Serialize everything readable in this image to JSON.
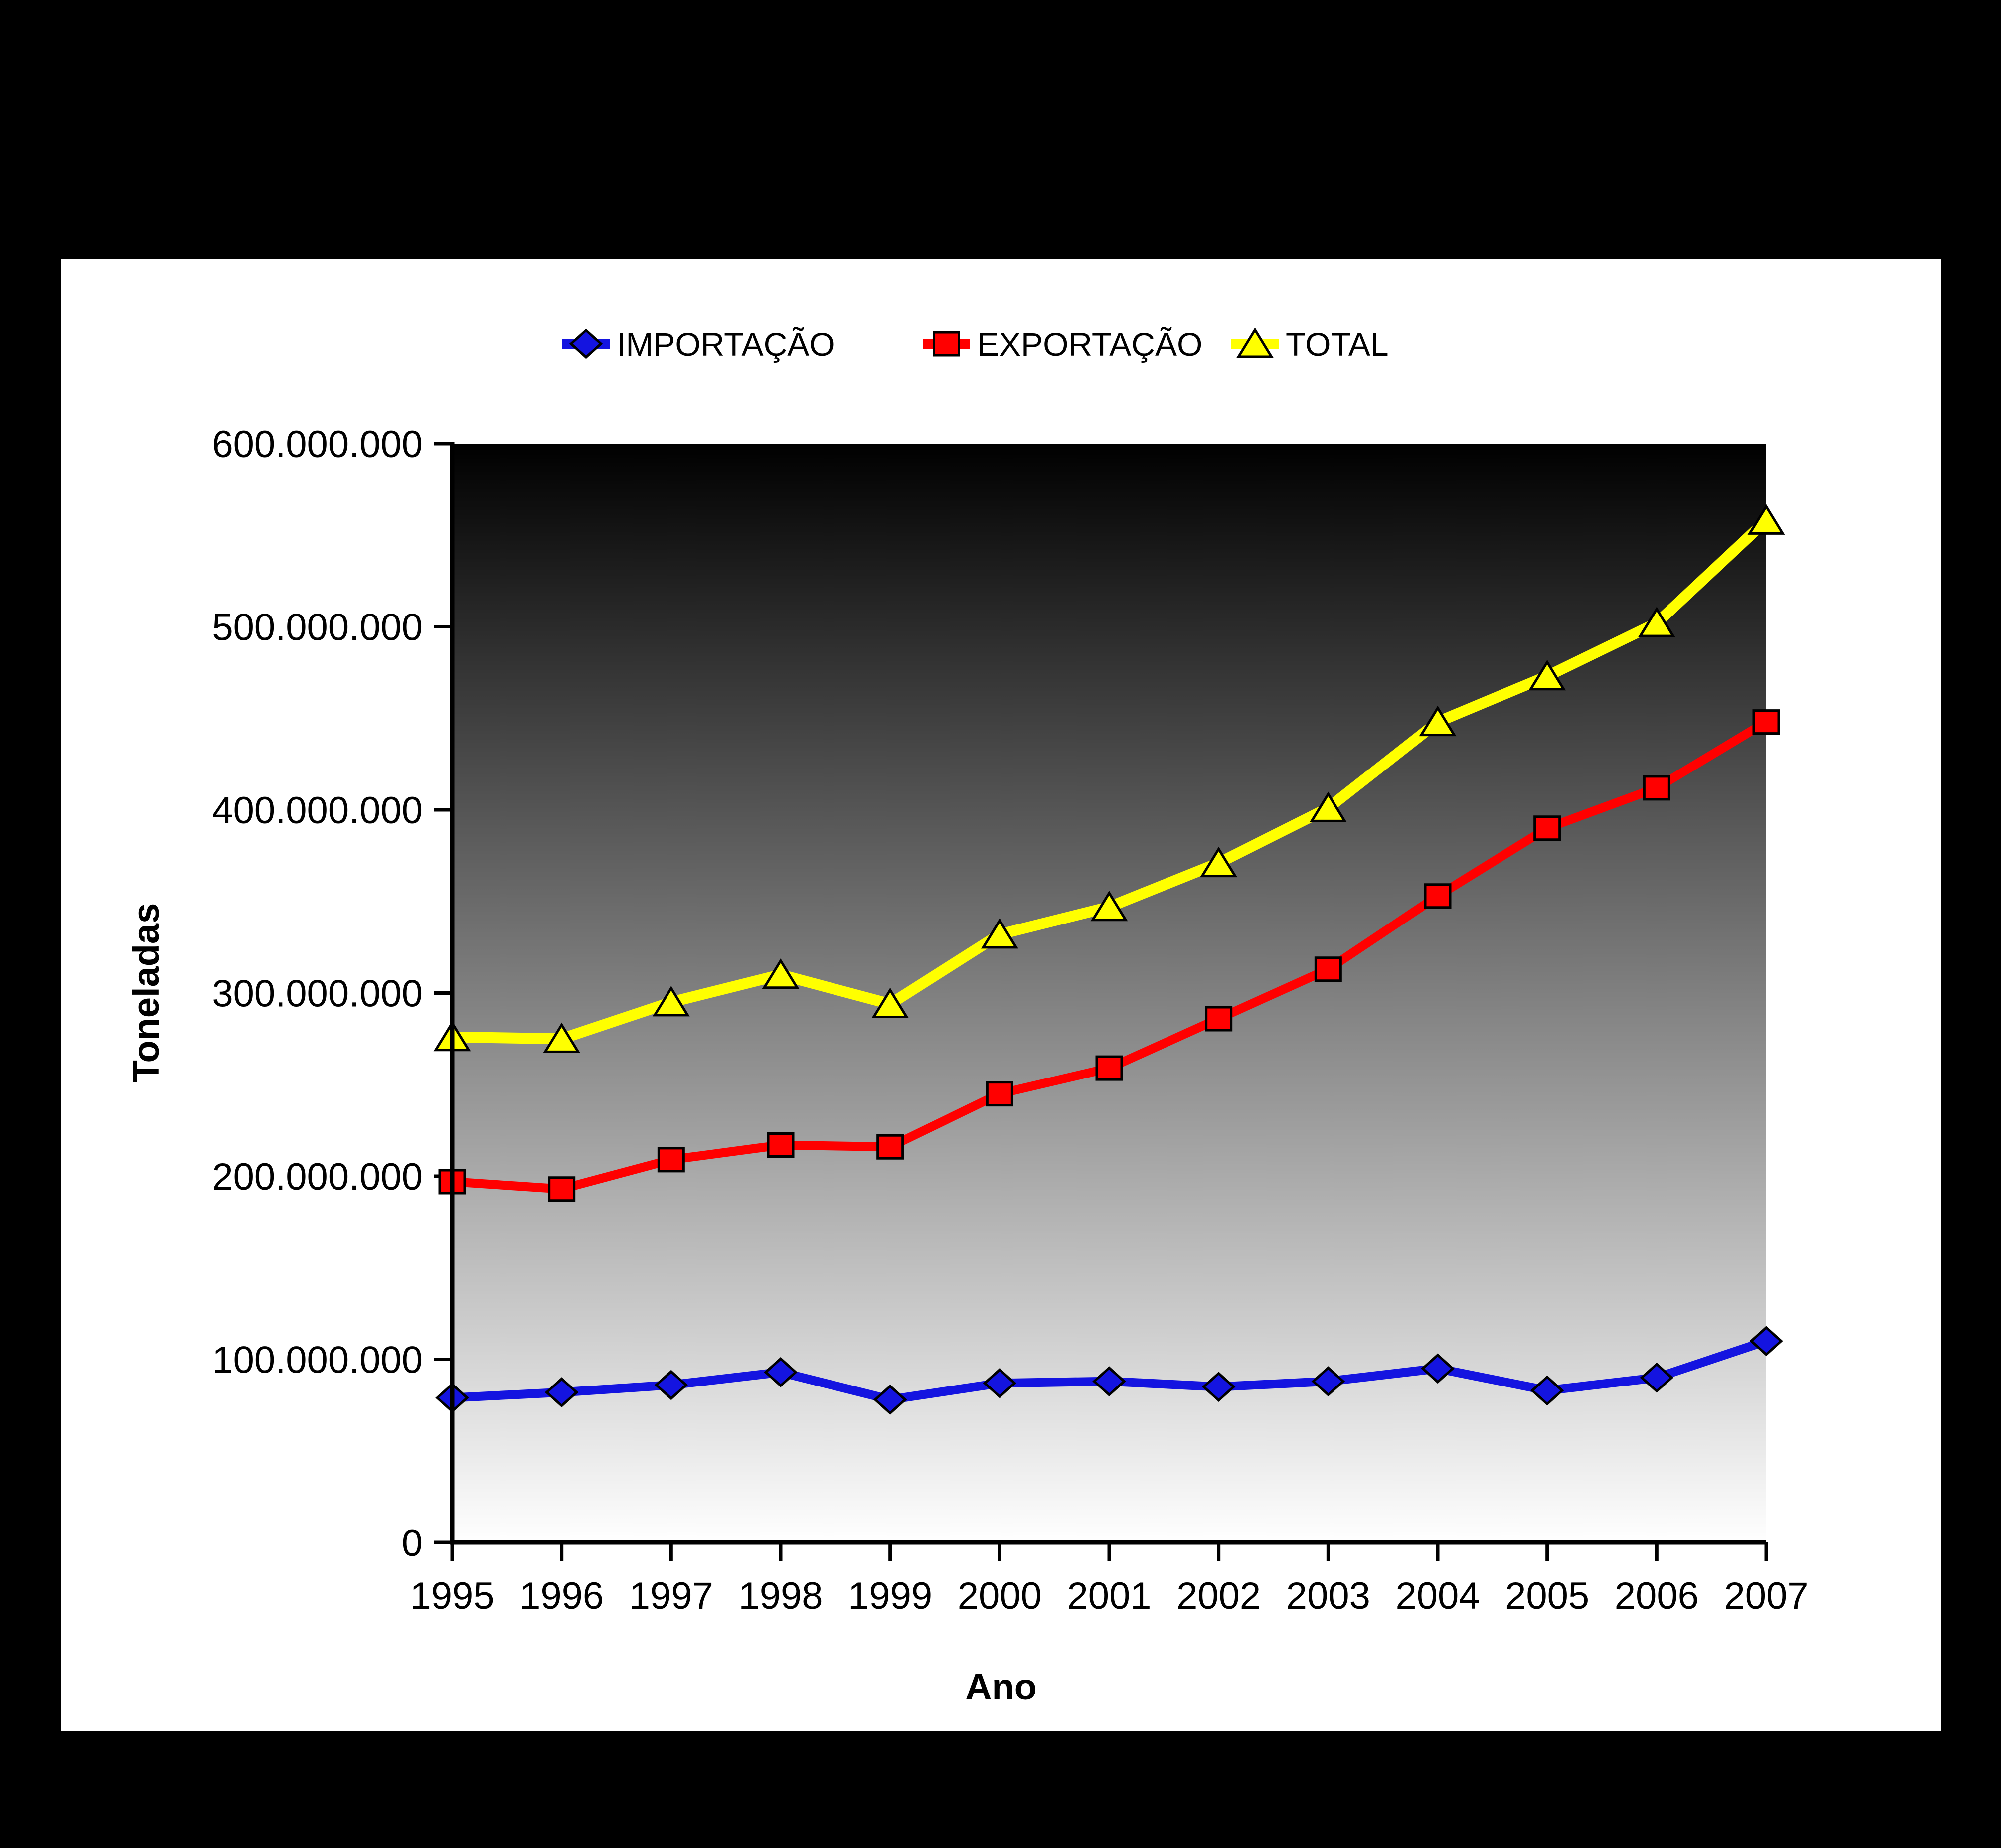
{
  "page": {
    "background_color": "#000000",
    "panel_color": "#ffffff"
  },
  "chart_data": {
    "type": "line",
    "title": "",
    "xlabel": "Ano",
    "ylabel": "Toneladas",
    "x": [
      "1995",
      "1996",
      "1997",
      "1998",
      "1999",
      "2000",
      "2001",
      "2002",
      "2003",
      "2004",
      "2005",
      "2006",
      "2007"
    ],
    "series": [
      {
        "name": "IMPORTAÇÃO",
        "marker": "diamond",
        "color": "#1414e0",
        "values": [
          79000000,
          82000000,
          86000000,
          93000000,
          78000000,
          87000000,
          88000000,
          85000000,
          88000000,
          95000000,
          83000000,
          90000000,
          110000000
        ]
      },
      {
        "name": "EXPORTAÇÃO",
        "marker": "square",
        "color": "#ff0000",
        "values": [
          197000000,
          193000000,
          209000000,
          217000000,
          216000000,
          245000000,
          259000000,
          286000000,
          313000000,
          353000000,
          390000000,
          412000000,
          448000000
        ]
      },
      {
        "name": "TOTAL",
        "marker": "triangle",
        "color": "#ffff00",
        "values": [
          276000000,
          275000000,
          295000000,
          310000000,
          294000000,
          332000000,
          347000000,
          371000000,
          401000000,
          448000000,
          473000000,
          502000000,
          558000000
        ]
      }
    ],
    "ylim": [
      0,
      600000000
    ],
    "ytick_values": [
      0,
      100000000,
      200000000,
      300000000,
      400000000,
      500000000,
      600000000
    ],
    "ytick_labels": [
      "0",
      "100.000.000",
      "200.000.000",
      "300.000.000",
      "400.000.000",
      "500.000.000",
      "600.000.000"
    ],
    "grid": false,
    "legend_position": "top-center",
    "plot_background": "vertical-gradient-black-to-white",
    "marker_outline": "#000000"
  }
}
